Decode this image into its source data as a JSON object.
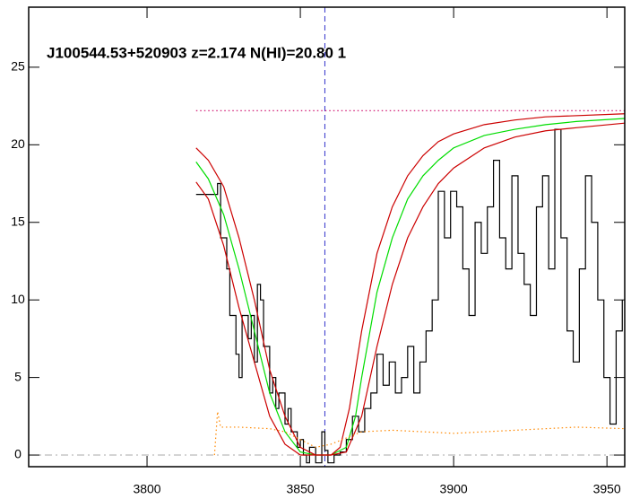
{
  "chart_data": {
    "type": "line",
    "title": "J100544.53+520903 z=2.174 N(HI)=20.80 1",
    "xlim": [
      3761.4,
      3955.8
    ],
    "ylim": [
      -0.75,
      28.87
    ],
    "xticks": [
      3800,
      3850,
      3900,
      3950
    ],
    "yticks": [
      0,
      5,
      10,
      15,
      20,
      25
    ],
    "vline": 3858,
    "vline_color": "#3333cc",
    "hline": 0,
    "hline_color": "#aaaaaa",
    "series": [
      {
        "color": "#000000",
        "style": "step",
        "x": [
          3816,
          3823,
          3824,
          3826,
          3827,
          3829,
          3830,
          3831,
          3833,
          3834,
          3835,
          3836,
          3837,
          3838,
          3840,
          3841,
          3842,
          3843,
          3845,
          3846,
          3847,
          3849,
          3850,
          3851,
          3852,
          3853,
          3855,
          3857,
          3858,
          3859,
          3861,
          3863,
          3865,
          3867,
          3869,
          3871,
          3873,
          3875,
          3877,
          3879,
          3881,
          3883,
          3885,
          3887,
          3889,
          3891,
          3893,
          3895,
          3897,
          3899,
          3901,
          3903,
          3905,
          3907,
          3909,
          3911,
          3913,
          3915,
          3917,
          3919,
          3921,
          3923,
          3925,
          3927,
          3929,
          3931,
          3933,
          3935,
          3937,
          3939,
          3941,
          3943,
          3945,
          3947,
          3949,
          3951,
          3953,
          3955
        ],
        "values": [
          16.8,
          17.5,
          14,
          12,
          9,
          6.5,
          5,
          9,
          7.5,
          9,
          6,
          11,
          10,
          7,
          4,
          5,
          3,
          4,
          2,
          3,
          1.5,
          0.5,
          1,
          0,
          -0.5,
          0.5,
          -0.5,
          1.5,
          0.3,
          -0.5,
          0,
          0.2,
          1,
          2.5,
          1.5,
          3,
          4,
          6.5,
          4.5,
          6,
          4,
          5,
          7,
          4,
          6,
          8,
          10,
          17,
          14,
          17,
          16,
          12,
          9,
          15,
          13,
          16,
          19,
          14,
          12,
          18,
          13,
          11,
          9,
          16,
          18,
          12,
          21,
          14,
          8,
          6,
          12,
          18,
          15,
          10,
          5,
          2,
          8,
          10
        ]
      },
      {
        "color": "#00dd00",
        "style": "solid",
        "x": [
          3816,
          3820,
          3825,
          3830,
          3835,
          3840,
          3845,
          3850,
          3855,
          3860,
          3865,
          3868,
          3870,
          3875,
          3880,
          3885,
          3890,
          3895,
          3900,
          3910,
          3920,
          3930,
          3940,
          3956
        ],
        "values": [
          18.9,
          17.8,
          15.5,
          12,
          8,
          4,
          1.5,
          0.2,
          0,
          0,
          0.5,
          2.5,
          5,
          10.5,
          14,
          16.5,
          18,
          19,
          19.8,
          20.6,
          21,
          21.3,
          21.5,
          21.7
        ]
      },
      {
        "color": "#cc0000",
        "style": "solid",
        "x": [
          3816,
          3820,
          3825,
          3830,
          3835,
          3840,
          3845,
          3850,
          3855,
          3860,
          3863,
          3866,
          3870,
          3875,
          3880,
          3885,
          3890,
          3895,
          3900,
          3910,
          3920,
          3930,
          3956
        ],
        "values": [
          19.8,
          19,
          17.3,
          14,
          10,
          5.5,
          2.5,
          0.5,
          0,
          0,
          0.5,
          3,
          8,
          13,
          16,
          18,
          19.3,
          20.2,
          20.7,
          21.3,
          21.6,
          21.8,
          22
        ]
      },
      {
        "color": "#cc0000",
        "style": "solid",
        "x": [
          3816,
          3820,
          3825,
          3830,
          3835,
          3840,
          3845,
          3850,
          3860,
          3865,
          3870,
          3875,
          3880,
          3885,
          3890,
          3895,
          3900,
          3910,
          3920,
          3930,
          3940,
          3956
        ],
        "values": [
          17.6,
          16.5,
          13.5,
          9.5,
          6,
          2.5,
          0.7,
          0,
          0,
          0.2,
          2.5,
          7,
          11,
          14,
          16,
          17.5,
          18.5,
          19.8,
          20.5,
          20.9,
          21.1,
          21.4
        ]
      },
      {
        "color": "#ff8800",
        "style": "dotted",
        "x": [
          3822,
          3823,
          3824,
          3830,
          3840,
          3845,
          3850,
          3855,
          3860,
          3870,
          3880,
          3890,
          3900,
          3920,
          3940,
          3956
        ],
        "values": [
          0,
          2.8,
          1.8,
          1.8,
          1.7,
          1.5,
          1,
          0.5,
          0.7,
          1.5,
          1.6,
          1.5,
          1.4,
          1.6,
          1.8,
          1.7
        ]
      },
      {
        "color": "#cc0066",
        "style": "dotted",
        "x": [
          3816,
          3956
        ],
        "values": [
          22.2,
          22.2
        ]
      }
    ]
  }
}
